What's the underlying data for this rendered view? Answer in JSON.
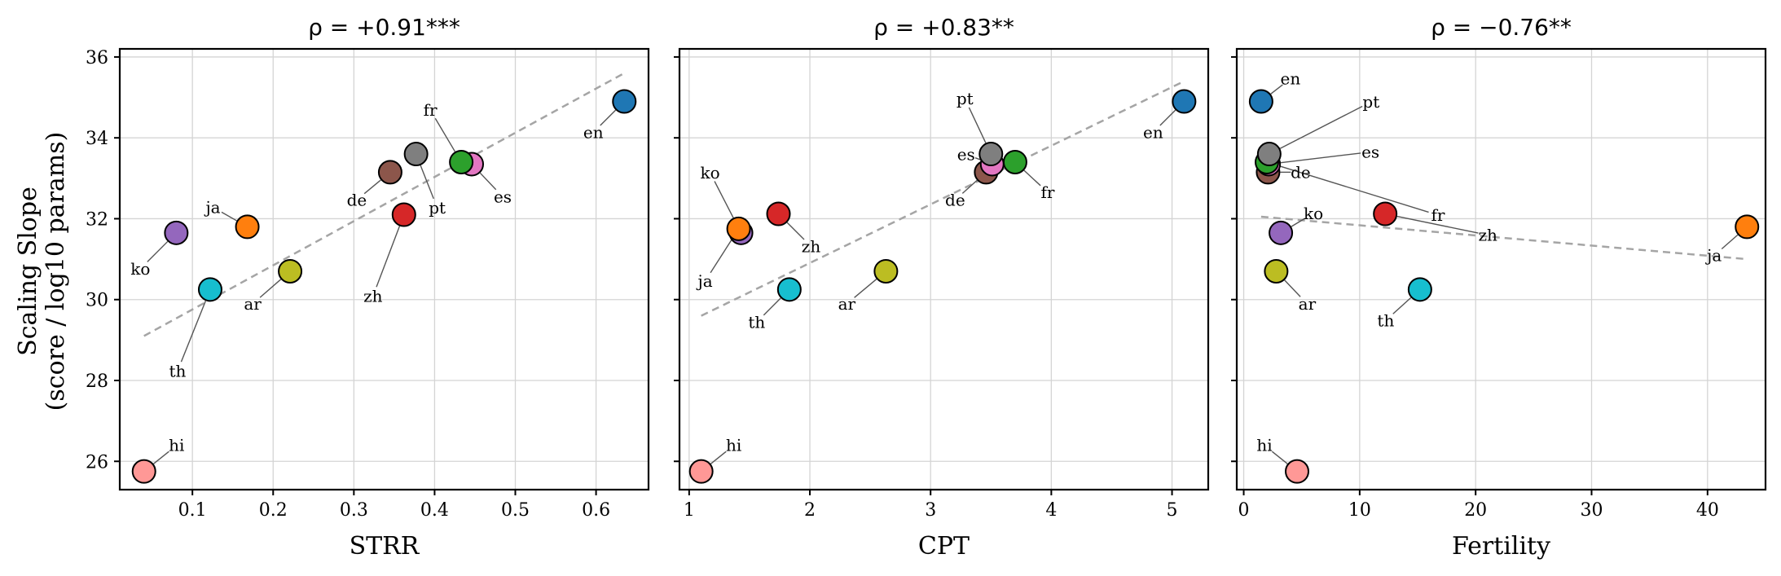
{
  "figure": {
    "ylabel_line1": "Scaling Slope",
    "ylabel_line2": "(score / log10 params)"
  },
  "colors": {
    "en": "#1f77b4",
    "ja": "#ff7f0e",
    "fr": "#2ca02c",
    "zh": "#d62728",
    "ko": "#9467bd",
    "de": "#8c564b",
    "es": "#e377c2",
    "pt": "#7f7f7f",
    "ar": "#bcbd22",
    "th": "#17becf",
    "hi": "#ff9896",
    "trend": "#a5a5a5"
  },
  "chart_data": [
    {
      "type": "scatter",
      "title": "ρ = +0.91***",
      "xlabel": "STRR",
      "ylabel": "Scaling Slope (score / log10 params)",
      "xlim": [
        0.01,
        0.665
      ],
      "ylim": [
        25.3,
        36.2
      ],
      "xticks": [
        0.1,
        0.2,
        0.3,
        0.4,
        0.5,
        0.6
      ],
      "xtick_labels": [
        "0.1",
        "0.2",
        "0.3",
        "0.4",
        "0.5",
        "0.6"
      ],
      "yticks": [
        26,
        28,
        30,
        32,
        34,
        36
      ],
      "ytick_labels": [
        "26",
        "28",
        "30",
        "32",
        "34",
        "36"
      ],
      "grid": true,
      "points": [
        {
          "label": "en",
          "x": 0.635,
          "y": 34.9
        },
        {
          "label": "ja",
          "x": 0.168,
          "y": 31.8
        },
        {
          "label": "fr",
          "x": 0.433,
          "y": 33.4
        },
        {
          "label": "zh",
          "x": 0.362,
          "y": 32.1
        },
        {
          "label": "ko",
          "x": 0.08,
          "y": 31.65
        },
        {
          "label": "de",
          "x": 0.345,
          "y": 33.15
        },
        {
          "label": "es",
          "x": 0.446,
          "y": 33.35
        },
        {
          "label": "pt",
          "x": 0.377,
          "y": 33.6
        },
        {
          "label": "ar",
          "x": 0.221,
          "y": 30.7
        },
        {
          "label": "th",
          "x": 0.122,
          "y": 30.25
        },
        {
          "label": "hi",
          "x": 0.04,
          "y": 25.75
        }
      ],
      "trend_line": {
        "x": [
          0.04,
          0.635
        ],
        "y": [
          29.1,
          35.6
        ]
      }
    },
    {
      "type": "scatter",
      "title": "ρ = +0.83**",
      "xlabel": "CPT",
      "ylabel": "",
      "xlim": [
        0.92,
        5.3
      ],
      "ylim": [
        25.3,
        36.2
      ],
      "xticks": [
        1,
        2,
        3,
        4,
        5
      ],
      "xtick_labels": [
        "1",
        "2",
        "3",
        "4",
        "5"
      ],
      "yticks": [
        26,
        28,
        30,
        32,
        34,
        36
      ],
      "ytick_labels": [],
      "grid": true,
      "points": [
        {
          "label": "en",
          "x": 5.1,
          "y": 34.9
        },
        {
          "label": "ja",
          "x": 1.41,
          "y": 31.75
        },
        {
          "label": "fr",
          "x": 3.7,
          "y": 33.4
        },
        {
          "label": "zh",
          "x": 1.74,
          "y": 32.12
        },
        {
          "label": "ko",
          "x": 1.43,
          "y": 31.65
        },
        {
          "label": "de",
          "x": 3.46,
          "y": 33.15
        },
        {
          "label": "es",
          "x": 3.51,
          "y": 33.35
        },
        {
          "label": "pt",
          "x": 3.5,
          "y": 33.6
        },
        {
          "label": "ar",
          "x": 2.63,
          "y": 30.7
        },
        {
          "label": "th",
          "x": 1.83,
          "y": 30.25
        },
        {
          "label": "hi",
          "x": 1.1,
          "y": 25.75
        }
      ],
      "trend_line": {
        "x": [
          1.1,
          5.1
        ],
        "y": [
          29.6,
          35.4
        ]
      }
    },
    {
      "type": "scatter",
      "title": "ρ = −0.76**",
      "xlabel": "Fertility",
      "ylabel": "",
      "xlim": [
        -0.6,
        45.0
      ],
      "ylim": [
        25.3,
        36.2
      ],
      "xticks": [
        0,
        10,
        20,
        30,
        40
      ],
      "xtick_labels": [
        "0",
        "10",
        "20",
        "30",
        "40"
      ],
      "yticks": [
        26,
        28,
        30,
        32,
        34,
        36
      ],
      "ytick_labels": [],
      "grid": true,
      "points": [
        {
          "label": "en",
          "x": 1.5,
          "y": 34.9
        },
        {
          "label": "ja",
          "x": 43.4,
          "y": 31.8
        },
        {
          "label": "fr",
          "x": 2.0,
          "y": 33.4
        },
        {
          "label": "zh",
          "x": 12.2,
          "y": 32.12
        },
        {
          "label": "ko",
          "x": 3.2,
          "y": 31.65
        },
        {
          "label": "de",
          "x": 2.1,
          "y": 33.15
        },
        {
          "label": "es",
          "x": 2.15,
          "y": 33.35
        },
        {
          "label": "pt",
          "x": 2.2,
          "y": 33.6
        },
        {
          "label": "ar",
          "x": 2.8,
          "y": 30.7
        },
        {
          "label": "th",
          "x": 15.2,
          "y": 30.25
        },
        {
          "label": "hi",
          "x": 4.6,
          "y": 25.75
        }
      ],
      "trend_line": {
        "x": [
          1.5,
          43.4
        ],
        "y": [
          32.05,
          31.0
        ]
      }
    }
  ]
}
